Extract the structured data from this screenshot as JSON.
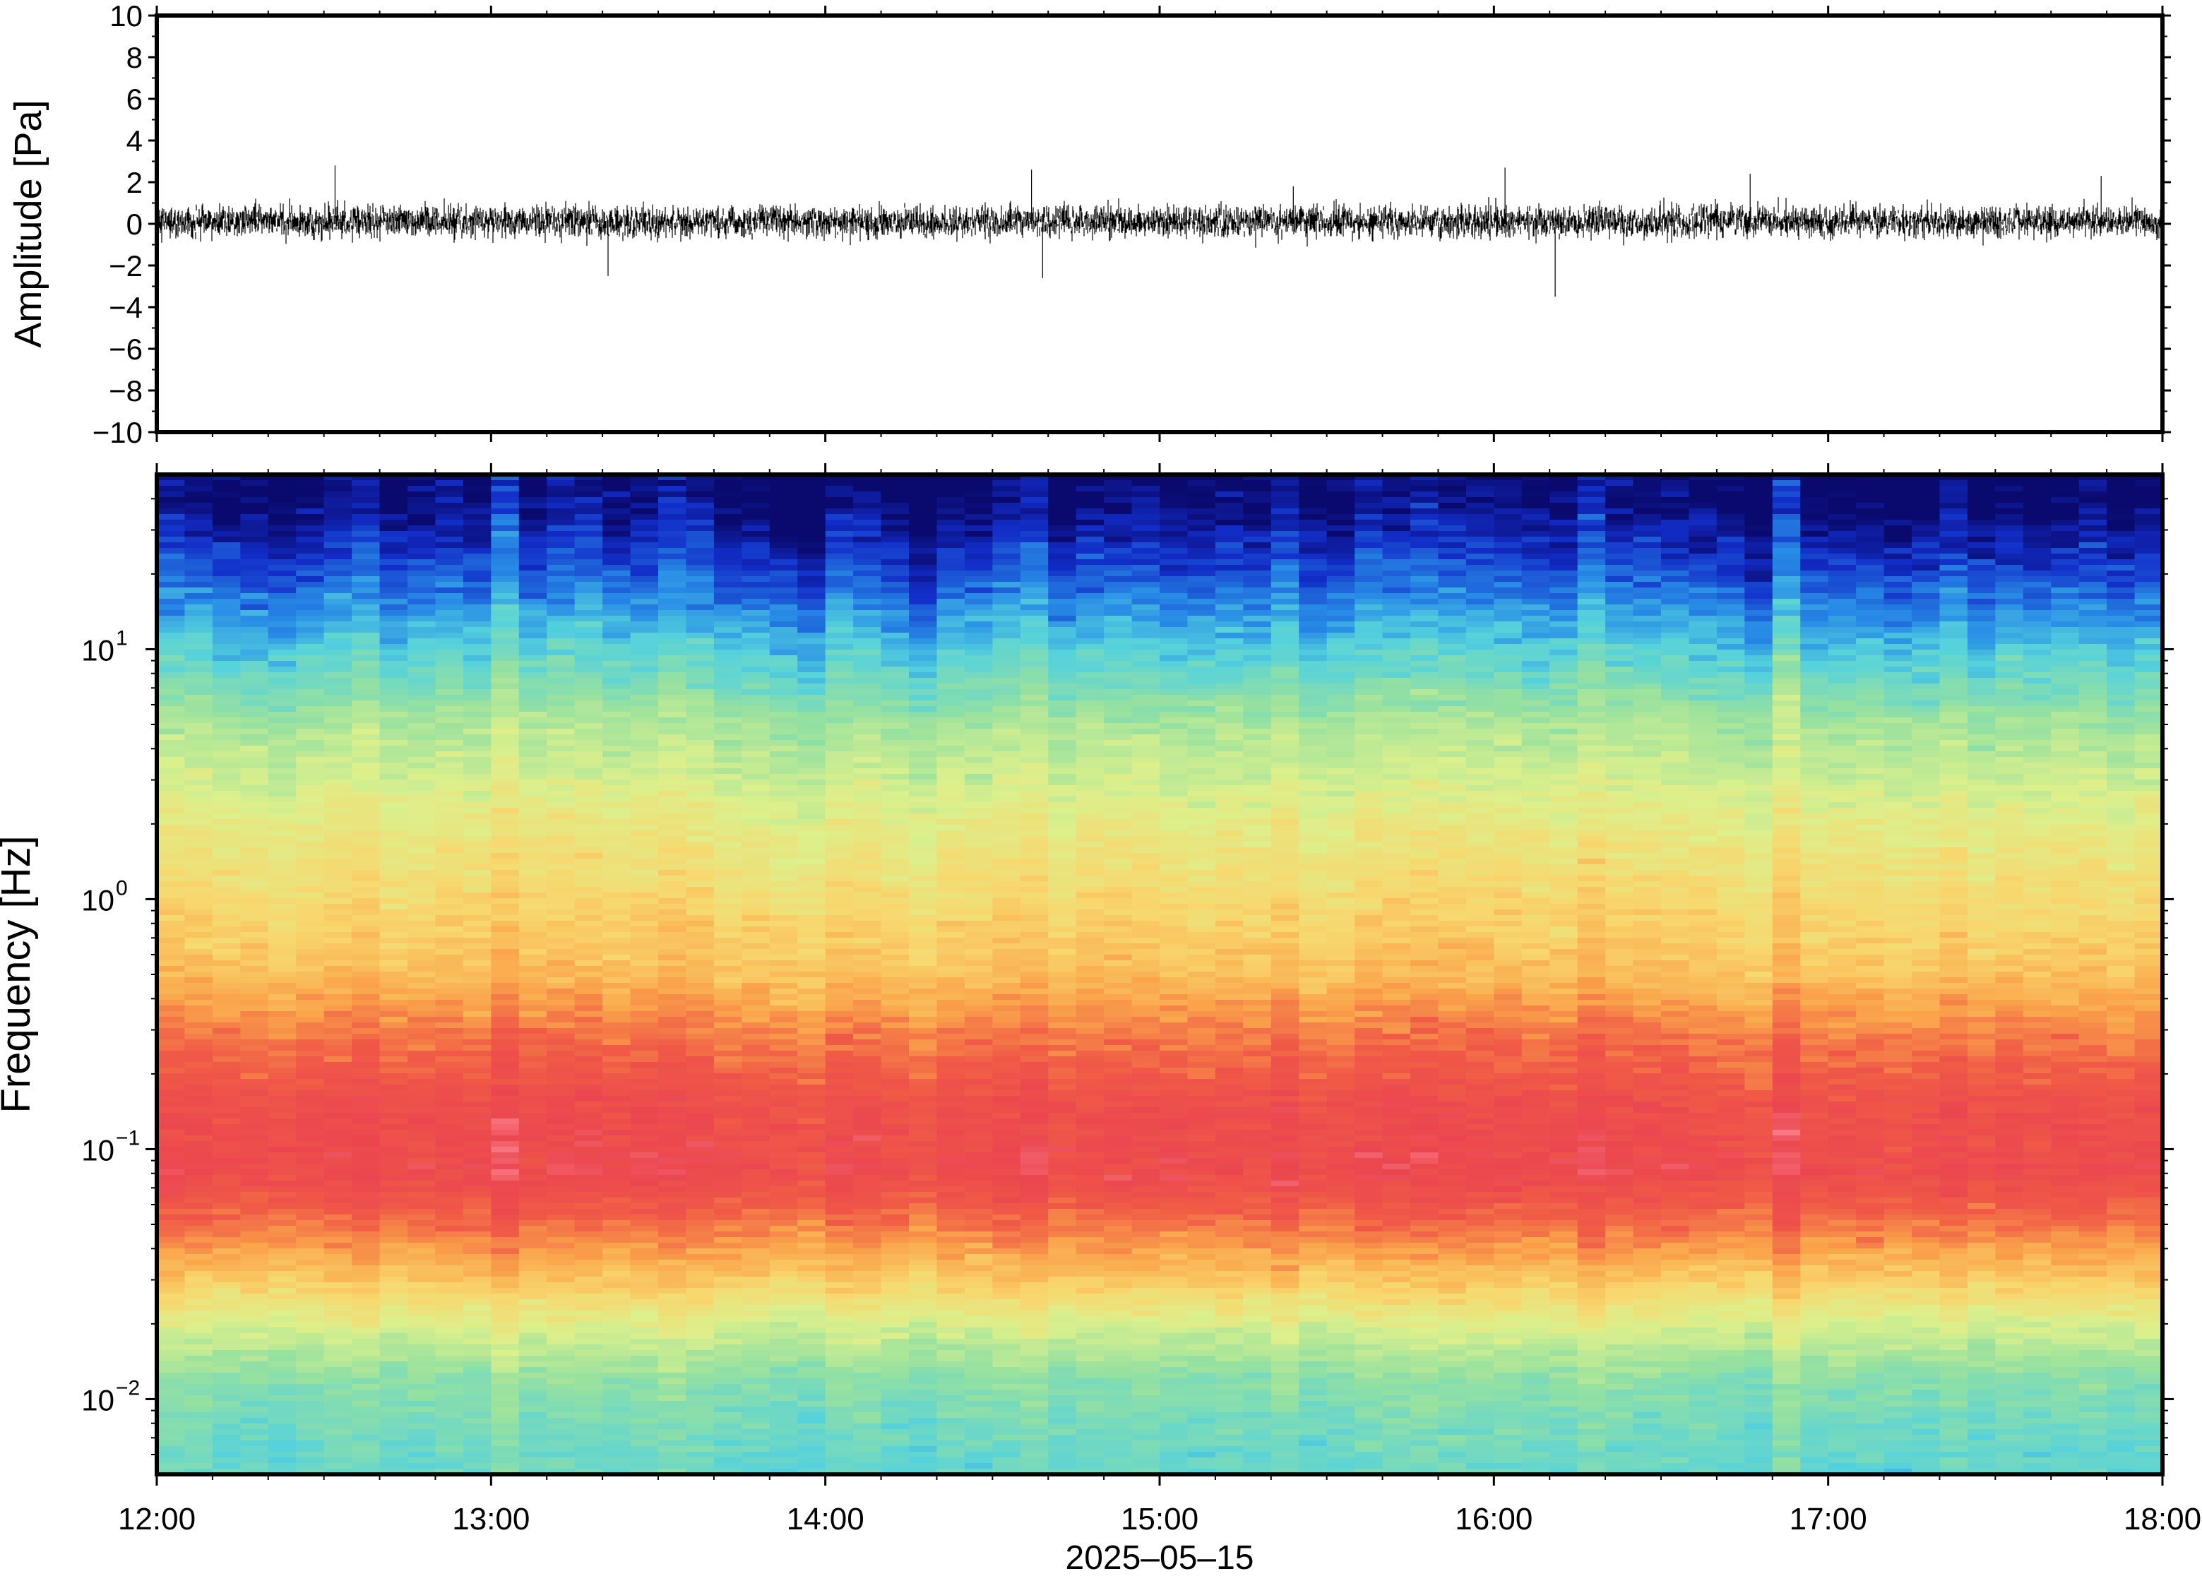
{
  "chart_data": [
    {
      "type": "line",
      "panel": "waveform",
      "ylabel": "Amplitude [Pa]",
      "ylim": [
        -10,
        10
      ],
      "yticks": [
        10,
        8,
        6,
        4,
        2,
        0,
        -2,
        -4,
        -6,
        -8,
        -10
      ],
      "ytick_labels": [
        "10",
        "8",
        "6",
        "4",
        "2",
        "0",
        "−2",
        "−4",
        "−6",
        "−8",
        "−10"
      ],
      "xlim": [
        "2025-05-15 12:00",
        "2025-05-15 18:00"
      ],
      "noise_envelope": {
        "typical_amplitude": [
          -1.0,
          1.2
        ],
        "peaks": [
          {
            "time": "12:32",
            "value": 2.8
          },
          {
            "time": "13:21",
            "value": -2.5
          },
          {
            "time": "14:37",
            "value": 2.6
          },
          {
            "time": "14:39",
            "value": -2.6
          },
          {
            "time": "15:24",
            "value": 1.8
          },
          {
            "time": "16:02",
            "value": 2.7
          },
          {
            "time": "16:11",
            "value": -3.5
          },
          {
            "time": "16:46",
            "value": 2.4
          },
          {
            "time": "17:49",
            "value": 2.3
          }
        ]
      },
      "color": "#000000"
    },
    {
      "type": "heatmap",
      "panel": "spectrogram",
      "ylabel": "Frequency [Hz]",
      "xlabel": "2025–05–15",
      "yscale": "log",
      "ylim": [
        0.005,
        50
      ],
      "yticks": [
        {
          "value": 10,
          "base": "10",
          "exp": "1"
        },
        {
          "value": 1,
          "base": "10",
          "exp": "0"
        },
        {
          "value": 0.1,
          "base": "10",
          "exp": "−1"
        },
        {
          "value": 0.01,
          "base": "10",
          "exp": "−2"
        }
      ],
      "xticks": [
        "12:00",
        "13:00",
        "14:00",
        "15:00",
        "16:00",
        "17:00",
        "18:00"
      ],
      "colormap": "rainbow (blue = low power, red = high power)",
      "power_profile": [
        {
          "freq": 40,
          "level": 0.0
        },
        {
          "freq": 20,
          "level": 0.15
        },
        {
          "freq": 10,
          "level": 0.32
        },
        {
          "freq": 5,
          "level": 0.47
        },
        {
          "freq": 2,
          "level": 0.58
        },
        {
          "freq": 1,
          "level": 0.64
        },
        {
          "freq": 0.5,
          "level": 0.7
        },
        {
          "freq": 0.3,
          "level": 0.8
        },
        {
          "freq": 0.15,
          "level": 0.9
        },
        {
          "freq": 0.08,
          "level": 0.92
        },
        {
          "freq": 0.05,
          "level": 0.82
        },
        {
          "freq": 0.03,
          "level": 0.68
        },
        {
          "freq": 0.02,
          "level": 0.55
        },
        {
          "freq": 0.012,
          "level": 0.42
        },
        {
          "freq": 0.006,
          "level": 0.36
        }
      ]
    }
  ]
}
